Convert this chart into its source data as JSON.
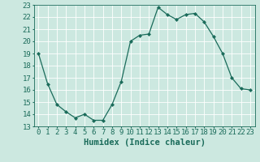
{
  "x": [
    0,
    1,
    2,
    3,
    4,
    5,
    6,
    7,
    8,
    9,
    10,
    11,
    12,
    13,
    14,
    15,
    16,
    17,
    18,
    19,
    20,
    21,
    22,
    23
  ],
  "y": [
    19,
    16.5,
    14.8,
    14.2,
    13.7,
    14.0,
    13.5,
    13.5,
    14.8,
    16.7,
    20.0,
    20.5,
    20.6,
    22.8,
    22.2,
    21.8,
    22.2,
    22.3,
    21.6,
    20.4,
    19.0,
    17.0,
    16.1,
    16.0
  ],
  "line_color": "#1a6b5a",
  "marker": "D",
  "marker_size": 2.0,
  "bg_color": "#cce8e0",
  "grid_color": "#ffffff",
  "tick_color": "#1a6b5a",
  "xlabel": "Humidex (Indice chaleur)",
  "ylabel_ticks": [
    13,
    14,
    15,
    16,
    17,
    18,
    19,
    20,
    21,
    22,
    23
  ],
  "xlim": [
    -0.5,
    23.5
  ],
  "ylim": [
    13,
    23
  ],
  "xlabel_fontsize": 7.5,
  "tick_fontsize": 6.5,
  "font_family": "monospace",
  "line_width": 0.9
}
